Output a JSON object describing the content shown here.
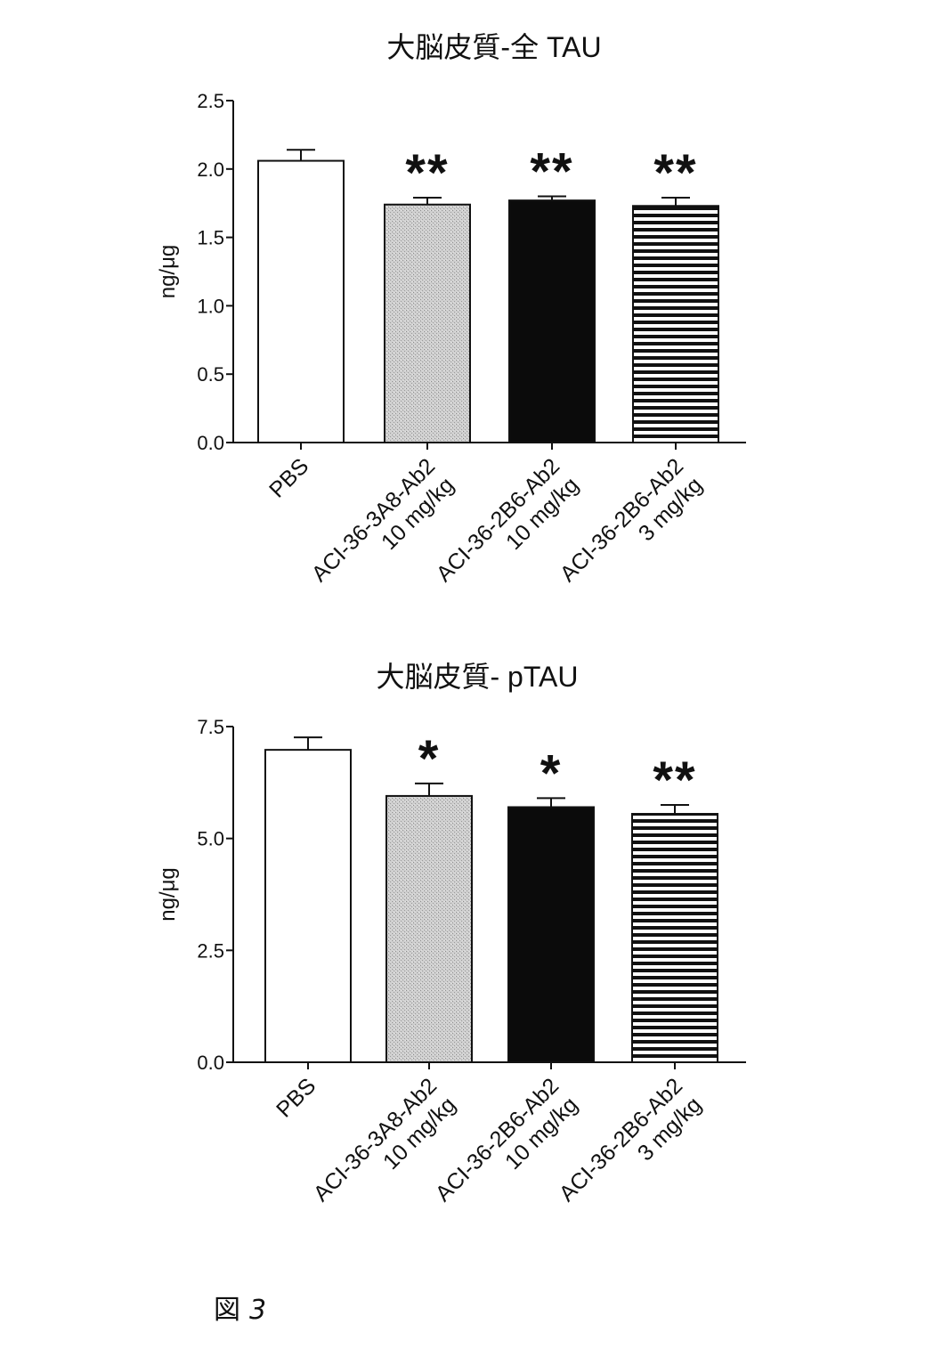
{
  "chart_data": [
    {
      "type": "bar",
      "title": "大脳皮質-全 TAU",
      "ylabel": "ng/μg",
      "ylim": [
        0,
        2.5
      ],
      "yticks": [
        0.0,
        0.5,
        1.0,
        1.5,
        2.0,
        2.5
      ],
      "ytick_labels": [
        "0.0",
        "0.5",
        "1.0",
        "1.5",
        "2.0",
        "2.5"
      ],
      "categories": [
        [
          "PBS"
        ],
        [
          "ACI-36-3A8-Ab2",
          "10 mg/kg"
        ],
        [
          "ACI-36-2B6-Ab2",
          "10 mg/kg"
        ],
        [
          "ACI-36-2B6-Ab2",
          "3 mg/kg"
        ]
      ],
      "values": [
        2.06,
        1.74,
        1.77,
        1.73
      ],
      "errors": [
        0.08,
        0.05,
        0.03,
        0.06
      ],
      "significance": [
        "",
        "**",
        "**",
        "**"
      ],
      "bar_styles": [
        "white",
        "dotted",
        "black",
        "striped"
      ],
      "grid": false
    },
    {
      "type": "bar",
      "title": "大脳皮質- pTAU",
      "ylabel": "ng/μg",
      "ylim": [
        0,
        7.5
      ],
      "yticks": [
        0.0,
        2.5,
        5.0,
        7.5
      ],
      "ytick_labels": [
        "0.0",
        "2.5",
        "5.0",
        "7.5"
      ],
      "categories": [
        [
          "PBS"
        ],
        [
          "ACI-36-3A8-Ab2",
          "10 mg/kg"
        ],
        [
          "ACI-36-2B6-Ab2",
          "10 mg/kg"
        ],
        [
          "ACI-36-2B6-Ab2",
          "3 mg/kg"
        ]
      ],
      "values": [
        6.98,
        5.95,
        5.7,
        5.55
      ],
      "errors": [
        0.28,
        0.28,
        0.2,
        0.2
      ],
      "significance": [
        "",
        "*",
        "*",
        "**"
      ],
      "bar_styles": [
        "white",
        "dotted",
        "black",
        "striped"
      ],
      "grid": false
    }
  ],
  "figure_label": {
    "prefix": "図",
    "number": "3"
  }
}
